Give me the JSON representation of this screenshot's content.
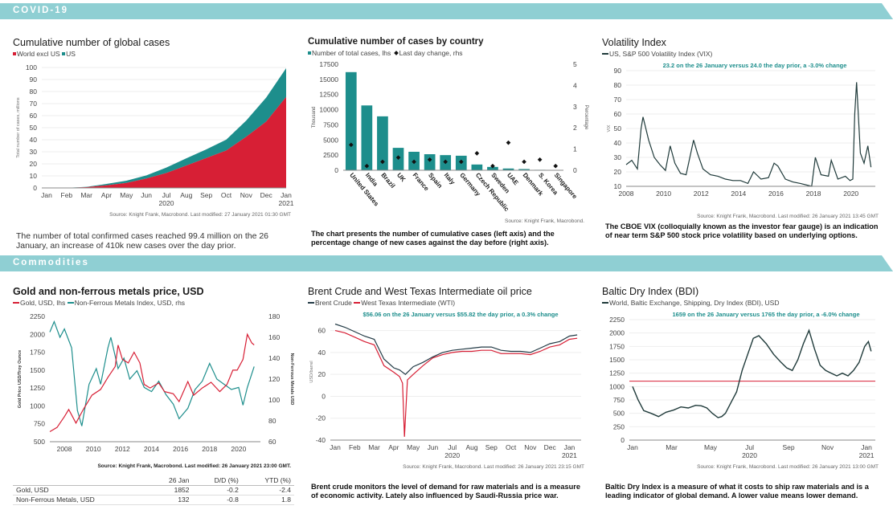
{
  "bands": {
    "covid": "COVID-19",
    "commodities": "Commodities"
  },
  "colors": {
    "red": "#d71f35",
    "teal": "#1d8e8c",
    "dark": "#1f3a3a",
    "navy": "#233b46",
    "band": "#8fcfd3"
  },
  "panels": {
    "cases": {
      "title": "Cumulative number of global cases",
      "legend": {
        "s1": "World excl US",
        "s2": "US"
      },
      "source": "Source: Knight Frank, Macrobond. Last modified: 27 January 2021 01:30 GMT",
      "description": "The number of total confirmed cases reached 99.4 million on the 26 January, an increase of 410k new cases over the day prior."
    },
    "country": {
      "title": "Cumulative number of cases by country",
      "legend": {
        "s1": "Number of total cases, lhs",
        "s2": "Last day change, rhs"
      },
      "source": "Source: Knight Frank, Macrobond.",
      "description": "The chart presents the number of cumulative cases (left axis) and the percentage change of new cases against the day before (right axis)."
    },
    "vix": {
      "title": "Volatility Index",
      "legend": {
        "s1": "US, S&P 500 Volatility Index (VIX)"
      },
      "annotation": "23.2 on the 26 January versus 24.0 the day prior, a -3.0% change",
      "source": "Source: Knight Frank, Macrobond. Last modified: 26 January 2021 13:45 GMT",
      "description": "The CBOE VIX (colloquially known as the investor fear gauge) is an indication of near term S&P 500 stock price volatility based on underlying options."
    },
    "gold": {
      "title": "Gold and non-ferrous metals price, USD",
      "legend": {
        "s1": "Gold, USD, lhs",
        "s2": "Non-Ferrous Metals Index, USD, rhs"
      },
      "source": "Source: Knight Frank, Macrobond. Last modified: 26 January 2021 23:00 GMT.",
      "table": {
        "headers": [
          "",
          "26 Jan",
          "D/D (%)",
          "YTD (%)"
        ],
        "rows": [
          [
            "Gold, USD",
            "1852",
            "-0.2",
            "-2.4"
          ],
          [
            "Non-Ferrous Metals, USD",
            "132",
            "-0.8",
            "1.8"
          ]
        ]
      }
    },
    "oil": {
      "title": "Brent Crude and West Texas Intermediate oil price",
      "legend": {
        "s1": "Brent Crude",
        "s2": "West Texas Intermediate (WTI)"
      },
      "annotation": "$56.06 on the 26 January versus $55.82 the day prior, a 0.3% change",
      "source": "Source: Knight Frank, Macrobond. Last modified: 26 January 2021 23:15 GMT",
      "description": "Brent crude monitors the level of demand for raw materials and is a measure of economic activity. Lately also influenced by Saudi-Russia price war."
    },
    "bdi": {
      "title": "Baltic Dry Index (BDI)",
      "legend": {
        "s1": "World, Baltic Exchange, Shipping, Dry Index (BDI), USD"
      },
      "annotation": "1659 on the 26 January versus 1765 the day prior, a -6.0% change",
      "source": "Source: Knight Frank, Macrobond. Last modified: 26 January 2021 13:00 GMT",
      "description": "Baltic Dry Index is a measure of what it costs to ship raw materials and is a leading indicator of global demand. A lower value means lower demand."
    }
  },
  "chart_data": [
    {
      "id": "cases",
      "type": "area",
      "stacked": true,
      "x": [
        "Jan",
        "Feb",
        "Mar",
        "Apr",
        "May",
        "Jun",
        "Jul",
        "Aug",
        "Sep",
        "Oct",
        "Nov",
        "Dec",
        "Jan"
      ],
      "x_year_labels": [
        {
          "at": "Jul",
          "label": "2020"
        },
        {
          "at": "Jan",
          "label": "2021"
        }
      ],
      "series": [
        {
          "name": "World excl US",
          "values": [
            0,
            0.1,
            0.7,
            2.2,
            4.2,
            7.8,
            12.4,
            18.6,
            24.8,
            31.1,
            42.5,
            55.1,
            75.6
          ]
        },
        {
          "name": "US",
          "values": [
            0,
            0,
            0.2,
            1.1,
            1.8,
            2.6,
            4.5,
            6.0,
            7.2,
            9.0,
            13.4,
            19.9,
            23.8
          ]
        }
      ],
      "ylabel": "Total number of cases, millions",
      "ylim": [
        0,
        100
      ],
      "yticks": [
        0,
        10,
        20,
        30,
        40,
        50,
        60,
        70,
        80,
        90,
        100
      ]
    },
    {
      "id": "country",
      "type": "bar",
      "categories": [
        "United States",
        "India",
        "Brazil",
        "UK",
        "France",
        "Spain",
        "Italy",
        "Germany",
        "Czech Republic",
        "Sweden",
        "UAE",
        "Denmark",
        "S. Korea",
        "Singapore"
      ],
      "series": [
        {
          "name": "Number of total cases, lhs",
          "axis": "left",
          "values": [
            16200,
            10700,
            8900,
            3700,
            3050,
            2650,
            2500,
            2400,
            950,
            550,
            290,
            200,
            75,
            60
          ]
        },
        {
          "name": "Last day change, rhs",
          "axis": "right",
          "kind": "scatter",
          "values": [
            1.2,
            0.2,
            0.4,
            0.6,
            0.4,
            0.5,
            0.4,
            0.4,
            0.8,
            0.2,
            1.3,
            0.4,
            0.5,
            0.2
          ]
        }
      ],
      "ylabel": "Thousand",
      "y2label": "Percentage",
      "ylim": [
        0,
        17500
      ],
      "yticks": [
        0,
        2500,
        5000,
        7500,
        10000,
        12500,
        15000,
        17500
      ],
      "y2lim": [
        0,
        5
      ],
      "y2ticks": [
        0,
        1,
        2,
        3,
        4,
        5
      ]
    },
    {
      "id": "vix",
      "type": "line",
      "series": [
        {
          "name": "US, S&P 500 Volatility Index (VIX)",
          "x": [
            2008.0,
            2008.3,
            2008.6,
            2008.8,
            2008.9,
            2009.2,
            2009.5,
            2009.8,
            2010.1,
            2010.35,
            2010.6,
            2010.9,
            2011.2,
            2011.6,
            2011.8,
            2012.1,
            2012.5,
            2012.9,
            2013.3,
            2013.7,
            2014.1,
            2014.5,
            2014.8,
            2015.2,
            2015.6,
            2015.9,
            2016.1,
            2016.5,
            2016.9,
            2017.3,
            2017.9,
            2018.1,
            2018.4,
            2018.8,
            2018.95,
            2019.3,
            2019.7,
            2019.95,
            2020.1,
            2020.2,
            2020.3,
            2020.5,
            2020.7,
            2020.9,
            2021.07
          ],
          "values": [
            25,
            28,
            22,
            50,
            58,
            42,
            30,
            25,
            21,
            38,
            26,
            19,
            18,
            42,
            33,
            22,
            18,
            17,
            15,
            14,
            14,
            12,
            20,
            15,
            16,
            26,
            24,
            15,
            13,
            12,
            10,
            30,
            18,
            17,
            28,
            15,
            17,
            14,
            15,
            60,
            82,
            33,
            26,
            38,
            23.2
          ]
        }
      ],
      "annotation": "23.2 on the 26 January versus 24.0 the day prior, a -3.0% change",
      "xlim": [
        2008,
        2021.3
      ],
      "xticks": [
        2008,
        2010,
        2012,
        2014,
        2016,
        2018,
        2020
      ],
      "ylabel": "VIX",
      "ylim": [
        10,
        90
      ],
      "yticks": [
        10,
        20,
        30,
        40,
        50,
        60,
        70,
        80,
        90
      ]
    },
    {
      "id": "gold",
      "type": "line",
      "series": [
        {
          "name": "Gold, USD, lhs",
          "axis": "left",
          "x": [
            2007.0,
            2007.5,
            2008.0,
            2008.3,
            2008.8,
            2009.3,
            2009.9,
            2010.5,
            2011.0,
            2011.5,
            2011.7,
            2012.0,
            2012.4,
            2012.8,
            2013.2,
            2013.5,
            2013.9,
            2014.5,
            2014.9,
            2015.5,
            2015.9,
            2016.5,
            2016.9,
            2017.5,
            2018.1,
            2018.7,
            2019.2,
            2019.6,
            2019.9,
            2020.3,
            2020.6,
            2020.9,
            2021.07
          ],
          "values": [
            640,
            700,
            850,
            950,
            760,
            950,
            1150,
            1230,
            1400,
            1550,
            1850,
            1650,
            1600,
            1750,
            1600,
            1300,
            1250,
            1320,
            1200,
            1170,
            1060,
            1340,
            1150,
            1250,
            1330,
            1200,
            1300,
            1500,
            1500,
            1650,
            2000,
            1880,
            1852
          ]
        },
        {
          "name": "Non-Ferrous Metals Index, USD, rhs",
          "axis": "right",
          "x": [
            2007.0,
            2007.3,
            2007.7,
            2008.0,
            2008.5,
            2008.9,
            2009.2,
            2009.7,
            2010.2,
            2010.5,
            2011.0,
            2011.2,
            2011.7,
            2012.1,
            2012.5,
            2013.0,
            2013.5,
            2014.0,
            2014.5,
            2015.0,
            2015.5,
            2015.9,
            2016.5,
            2017.0,
            2017.5,
            2018.0,
            2018.5,
            2019.0,
            2019.5,
            2020.0,
            2020.3,
            2020.6,
            2021.07
          ],
          "values": [
            165,
            175,
            160,
            168,
            150,
            90,
            75,
            115,
            130,
            115,
            150,
            160,
            130,
            140,
            120,
            128,
            112,
            108,
            118,
            105,
            96,
            82,
            92,
            110,
            118,
            135,
            120,
            115,
            110,
            112,
            95,
            112,
            132
          ]
        }
      ],
      "xticks": [
        2008,
        2010,
        2012,
        2014,
        2016,
        2018,
        2020
      ],
      "xlim": [
        2007,
        2021.5
      ],
      "ylabel": "Gold Price USD/Troy Ounce",
      "y2label": "Non-Ferrous Metals USD",
      "ylim": [
        500,
        2250
      ],
      "yticks": [
        500,
        750,
        1000,
        1250,
        1500,
        1750,
        2000,
        2250
      ],
      "y2lim": [
        60,
        180
      ],
      "y2ticks": [
        60,
        80,
        100,
        120,
        140,
        160,
        180
      ]
    },
    {
      "id": "oil",
      "type": "line",
      "x_labels": [
        "Jan",
        "Feb",
        "Mar",
        "Apr",
        "May",
        "Jun",
        "Jul",
        "Aug",
        "Sep",
        "Oct",
        "Nov",
        "Dec",
        "Jan"
      ],
      "x_year_labels": [
        {
          "at": "Jul",
          "label": "2020"
        },
        {
          "at": "Jan",
          "label": "2021"
        }
      ],
      "series": [
        {
          "name": "Brent Crude",
          "x": [
            0,
            0.5,
            1,
            1.5,
            2,
            2.5,
            3,
            3.3,
            3.6,
            4,
            4.5,
            5,
            5.5,
            6,
            6.5,
            7,
            7.5,
            8,
            8.5,
            9,
            9.5,
            10,
            10.5,
            11,
            11.5,
            12,
            12.4
          ],
          "values": [
            66,
            63,
            59,
            55,
            52,
            34,
            26,
            24,
            20,
            27,
            31,
            36,
            40,
            42,
            43,
            44,
            45,
            45,
            42,
            41,
            41,
            40,
            44,
            48,
            50,
            55,
            56.06
          ]
        },
        {
          "name": "West Texas Intermediate (WTI)",
          "x": [
            0,
            0.5,
            1,
            1.5,
            2,
            2.5,
            3,
            3.3,
            3.45,
            3.55,
            3.7,
            4,
            4.5,
            5,
            5.5,
            6,
            6.5,
            7,
            7.5,
            8,
            8.5,
            9,
            9.5,
            10,
            10.5,
            11,
            11.5,
            12,
            12.4
          ],
          "values": [
            60,
            58,
            54,
            50,
            47,
            28,
            22,
            18,
            12,
            -37,
            15,
            20,
            28,
            35,
            38,
            40,
            41,
            41,
            42,
            42,
            39,
            39,
            39,
            38,
            41,
            45,
            47,
            52,
            53
          ]
        }
      ],
      "annotation": "$56.06 on the 26 January versus $55.82 the day prior, a 0.3% change",
      "ylabel": "USD/barrel",
      "ylim": [
        -40,
        70
      ],
      "yticks": [
        -40,
        -20,
        0,
        20,
        40,
        60
      ]
    },
    {
      "id": "bdi",
      "type": "line",
      "x_labels": [
        "Jan",
        "Mar",
        "May",
        "Jul",
        "Sep",
        "Nov",
        "Jan"
      ],
      "x_year_labels": [
        {
          "at": "Jul",
          "label": "2020"
        },
        {
          "at": "Jan",
          "label": "2021"
        }
      ],
      "series": [
        {
          "name": "World, Baltic Exchange, Shipping, Dry Index (BDI), USD",
          "x": [
            0,
            0.3,
            0.6,
            1,
            1.4,
            1.8,
            2.2,
            2.6,
            3,
            3.4,
            3.7,
            4,
            4.3,
            4.6,
            4.8,
            5,
            5.3,
            5.6,
            5.9,
            6.2,
            6.5,
            6.8,
            7.2,
            7.6,
            8,
            8.3,
            8.6,
            8.9,
            9.2,
            9.5,
            9.8,
            10.1,
            10.4,
            10.7,
            11,
            11.3,
            11.6,
            11.9,
            12.2,
            12.5,
            12.7,
            12.85
          ],
          "values": [
            1000,
            750,
            550,
            500,
            440,
            520,
            560,
            620,
            600,
            650,
            640,
            600,
            500,
            420,
            440,
            500,
            700,
            900,
            1300,
            1600,
            1900,
            1950,
            1800,
            1600,
            1450,
            1350,
            1300,
            1500,
            1800,
            2050,
            1700,
            1400,
            1300,
            1250,
            1200,
            1250,
            1200,
            1300,
            1450,
            1750,
            1840,
            1659
          ]
        }
      ],
      "reference_line": 1100,
      "annotation": "1659 on the 26 January versus 1765 the day prior, a -6.0% change",
      "ylim": [
        0,
        2250
      ],
      "yticks": [
        0,
        250,
        500,
        750,
        1000,
        1250,
        1500,
        1750,
        2000,
        2250
      ]
    }
  ]
}
